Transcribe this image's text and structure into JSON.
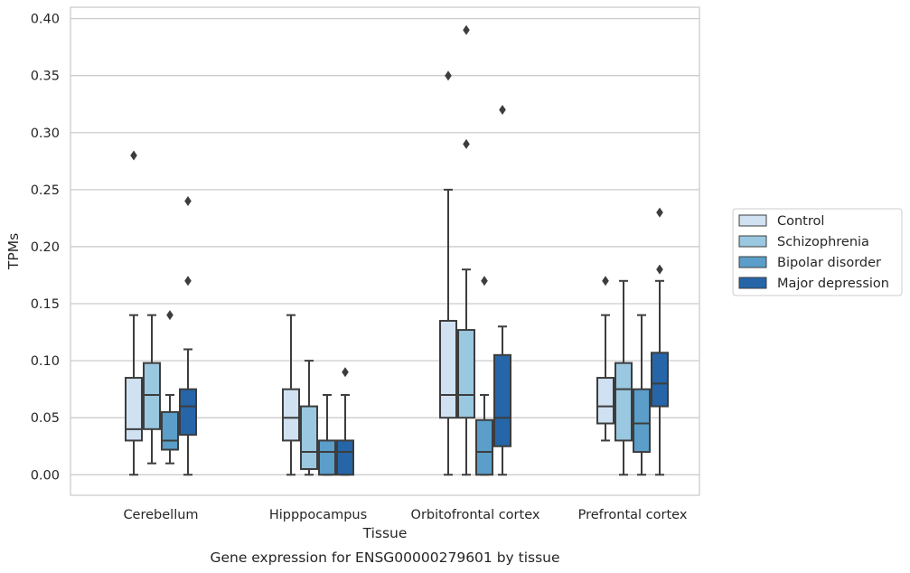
{
  "chart_data": {
    "type": "box",
    "title": "",
    "caption": "Gene expression for ENSG00000279601 by tissue",
    "xlabel": "Tissue",
    "ylabel": "TPMs",
    "ylim": [
      -0.018,
      0.41
    ],
    "yticks": [
      0.0,
      0.05,
      0.1,
      0.15,
      0.2,
      0.25,
      0.3,
      0.35,
      0.4
    ],
    "ytick_labels": [
      "0.00",
      "0.05",
      "0.10",
      "0.15",
      "0.20",
      "0.25",
      "0.30",
      "0.35",
      "0.40"
    ],
    "grid": "horizontal",
    "legend_position": "right",
    "categories": [
      "Cerebellum",
      "Hipppocampus",
      "Orbitofrontal cortex",
      "Prefrontal cortex"
    ],
    "series": [
      {
        "name": "Control",
        "color": "#d0e1f2",
        "boxes": [
          {
            "min": 0.0,
            "q1": 0.03,
            "median": 0.04,
            "q3": 0.085,
            "max": 0.14,
            "outliers": [
              0.28
            ]
          },
          {
            "min": 0.0,
            "q1": 0.03,
            "median": 0.05,
            "q3": 0.075,
            "max": 0.14,
            "outliers": []
          },
          {
            "min": 0.0,
            "q1": 0.05,
            "median": 0.07,
            "q3": 0.135,
            "max": 0.25,
            "outliers": [
              0.35
            ]
          },
          {
            "min": 0.03,
            "q1": 0.045,
            "median": 0.06,
            "q3": 0.085,
            "max": 0.14,
            "outliers": [
              0.17
            ]
          }
        ]
      },
      {
        "name": "Schizophrenia",
        "color": "#9ac8e0",
        "boxes": [
          {
            "min": 0.01,
            "q1": 0.04,
            "median": 0.07,
            "q3": 0.098,
            "max": 0.14,
            "outliers": []
          },
          {
            "min": 0.0,
            "q1": 0.005,
            "median": 0.02,
            "q3": 0.06,
            "max": 0.1,
            "outliers": []
          },
          {
            "min": 0.0,
            "q1": 0.05,
            "median": 0.07,
            "q3": 0.127,
            "max": 0.18,
            "outliers": [
              0.29,
              0.39
            ]
          },
          {
            "min": 0.0,
            "q1": 0.03,
            "median": 0.075,
            "q3": 0.098,
            "max": 0.17,
            "outliers": []
          }
        ]
      },
      {
        "name": "Bipolar disorder",
        "color": "#5a9ec9",
        "boxes": [
          {
            "min": 0.01,
            "q1": 0.022,
            "median": 0.03,
            "q3": 0.055,
            "max": 0.07,
            "outliers": [
              0.14
            ]
          },
          {
            "min": 0.0,
            "q1": 0.0,
            "median": 0.02,
            "q3": 0.03,
            "max": 0.07,
            "outliers": []
          },
          {
            "min": 0.0,
            "q1": 0.0,
            "median": 0.02,
            "q3": 0.048,
            "max": 0.07,
            "outliers": [
              0.17
            ]
          },
          {
            "min": 0.0,
            "q1": 0.02,
            "median": 0.045,
            "q3": 0.075,
            "max": 0.14,
            "outliers": []
          }
        ]
      },
      {
        "name": "Major depression",
        "color": "#2565a8",
        "boxes": [
          {
            "min": 0.0,
            "q1": 0.035,
            "median": 0.06,
            "q3": 0.075,
            "max": 0.11,
            "outliers": [
              0.17,
              0.24
            ]
          },
          {
            "min": 0.0,
            "q1": 0.0,
            "median": 0.02,
            "q3": 0.03,
            "max": 0.07,
            "outliers": [
              0.09
            ]
          },
          {
            "min": 0.0,
            "q1": 0.025,
            "median": 0.05,
            "q3": 0.105,
            "max": 0.13,
            "outliers": [
              0.32
            ]
          },
          {
            "min": 0.0,
            "q1": 0.06,
            "median": 0.08,
            "q3": 0.107,
            "max": 0.17,
            "outliers": [
              0.18,
              0.23
            ]
          }
        ]
      }
    ]
  }
}
